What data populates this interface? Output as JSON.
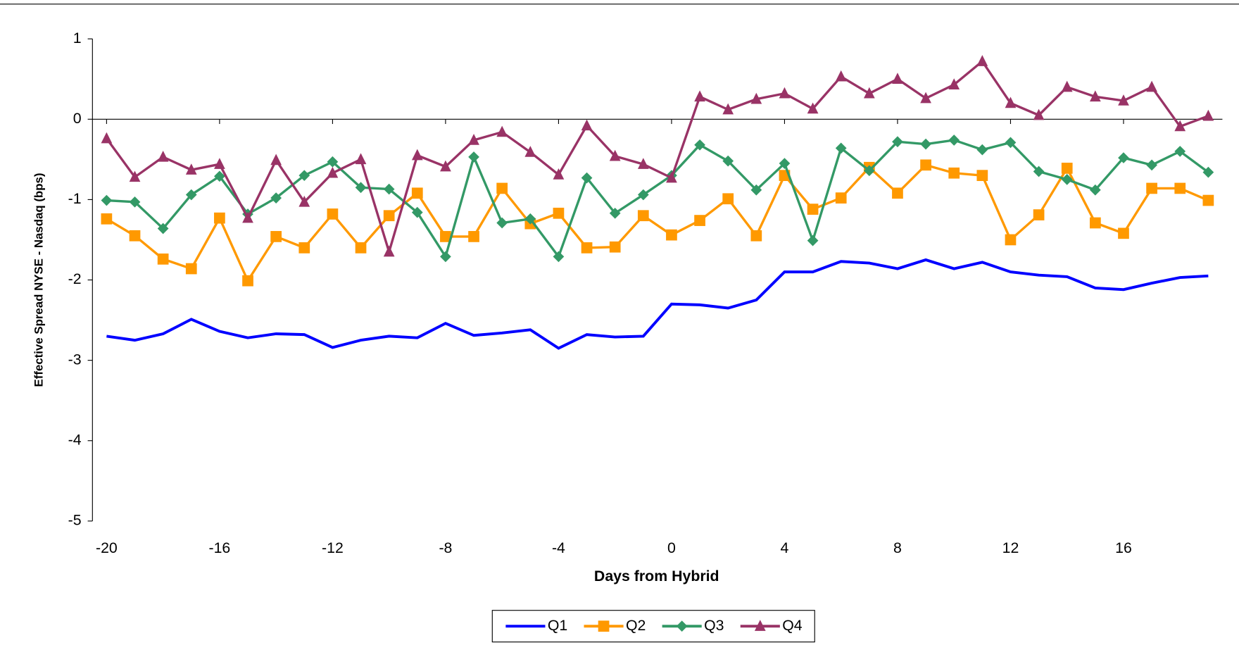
{
  "chart_data": {
    "type": "line",
    "xlabel": "Days from Hybrid",
    "ylabel": "Effective Spread NYSE - Nasdaq (bps)",
    "x": [
      -20,
      -19,
      -18,
      -17,
      -16,
      -15,
      -14,
      -13,
      -12,
      -11,
      -10,
      -9,
      -8,
      -7,
      -6,
      -5,
      -4,
      -3,
      -2,
      -1,
      0,
      1,
      2,
      3,
      4,
      5,
      6,
      7,
      8,
      9,
      10,
      11,
      12,
      13,
      14,
      15,
      16,
      17,
      18,
      19
    ],
    "xlim": [
      -20.5,
      19.5
    ],
    "xticks": [
      -20,
      -16,
      -12,
      -8,
      -4,
      0,
      4,
      8,
      12,
      16
    ],
    "ylim": [
      -5,
      1
    ],
    "yticks": [
      -5,
      -4,
      -3,
      -2,
      -1,
      0,
      1
    ],
    "legend": "bottom",
    "series": [
      {
        "name": "Q1",
        "color": "#0000ff",
        "marker": "none",
        "values": [
          -2.7,
          -2.75,
          -2.67,
          -2.49,
          -2.64,
          -2.72,
          -2.67,
          -2.68,
          -2.84,
          -2.75,
          -2.7,
          -2.72,
          -2.54,
          -2.69,
          -2.66,
          -2.62,
          -2.85,
          -2.68,
          -2.71,
          -2.7,
          -2.3,
          -2.31,
          -2.35,
          -2.25,
          -1.9,
          -1.9,
          -1.77,
          -1.79,
          -1.86,
          -1.75,
          -1.86,
          -1.78,
          -1.9,
          -1.94,
          -1.96,
          -2.1,
          -2.12,
          -2.04,
          -1.97,
          -1.95
        ]
      },
      {
        "name": "Q2",
        "color": "#ff9900",
        "marker": "square",
        "values": [
          -1.24,
          -1.45,
          -1.74,
          -1.86,
          -1.23,
          -2.01,
          -1.46,
          -1.6,
          -1.18,
          -1.6,
          -1.2,
          -0.92,
          -1.46,
          -1.46,
          -0.86,
          -1.3,
          -1.17,
          -1.6,
          -1.59,
          -1.2,
          -1.44,
          -1.26,
          -0.99,
          -1.45,
          -0.7,
          -1.12,
          -0.98,
          -0.6,
          -0.92,
          -0.57,
          -0.67,
          -0.7,
          -1.5,
          -1.19,
          -0.61,
          -1.29,
          -1.42,
          -0.86,
          -0.86,
          -1.01
        ]
      },
      {
        "name": "Q3",
        "color": "#339966",
        "marker": "diamond",
        "values": [
          -1.01,
          -1.03,
          -1.36,
          -0.94,
          -0.71,
          -1.18,
          -0.98,
          -0.7,
          -0.53,
          -0.85,
          -0.87,
          -1.16,
          -1.71,
          -0.47,
          -1.29,
          -1.24,
          -1.71,
          -0.73,
          -1.17,
          -0.94,
          -0.7,
          -0.32,
          -0.52,
          -0.88,
          -0.55,
          -1.51,
          -0.36,
          -0.64,
          -0.28,
          -0.31,
          -0.26,
          -0.38,
          -0.29,
          -0.65,
          -0.75,
          -0.88,
          -0.48,
          -0.57,
          -0.4,
          -0.66
        ]
      },
      {
        "name": "Q4",
        "color": "#993366",
        "marker": "triangle",
        "values": [
          -0.24,
          -0.72,
          -0.47,
          -0.63,
          -0.56,
          -1.23,
          -0.51,
          -1.03,
          -0.67,
          -0.5,
          -1.65,
          -0.45,
          -0.59,
          -0.26,
          -0.16,
          -0.41,
          -0.69,
          -0.08,
          -0.46,
          -0.56,
          -0.73,
          0.28,
          0.12,
          0.25,
          0.32,
          0.13,
          0.53,
          0.32,
          0.5,
          0.26,
          0.43,
          0.72,
          0.2,
          0.05,
          0.4,
          0.28,
          0.23,
          0.4,
          -0.09,
          0.04
        ]
      }
    ]
  }
}
